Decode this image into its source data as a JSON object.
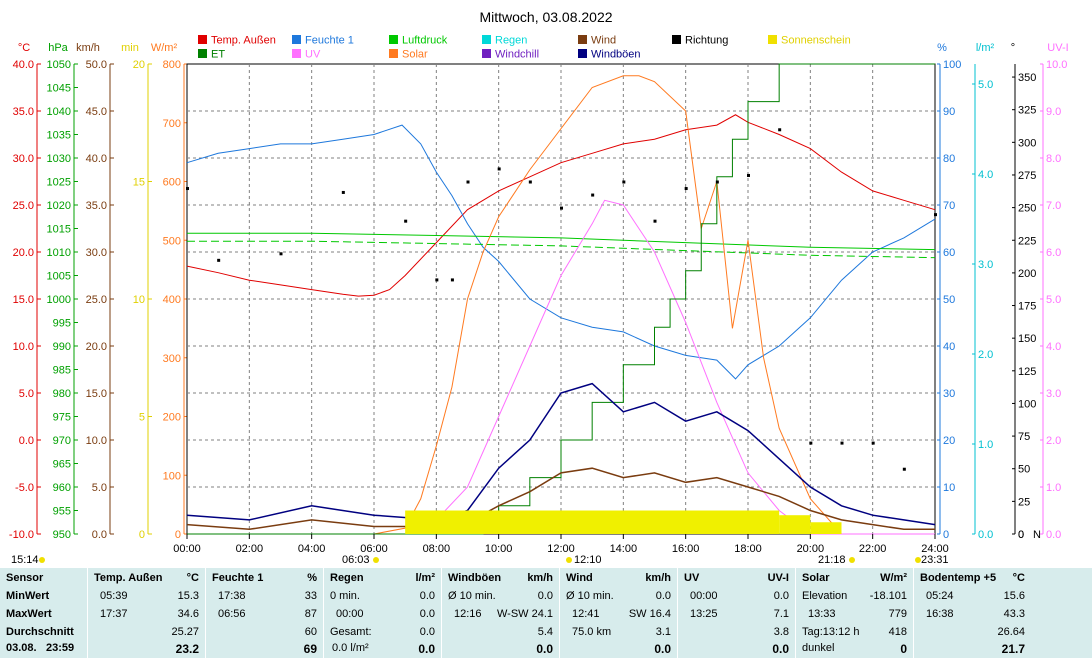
{
  "title": "Mittwoch, 03.08.2022",
  "legend": [
    {
      "label": "Temp. Außen",
      "color": "#e00000"
    },
    {
      "label": "Feuchte 1",
      "color": "#1e78dc"
    },
    {
      "label": "Luftdruck",
      "color": "#00c800"
    },
    {
      "label": "Regen",
      "color": "#00d8d8"
    },
    {
      "label": "Wind",
      "color": "#7a3c10"
    },
    {
      "label": "Richtung",
      "color": "#000000"
    },
    {
      "label": "Sonnenschein",
      "color": "#f0e000"
    },
    {
      "label": "ET",
      "color": "#008000"
    },
    {
      "label": "UV",
      "color": "#ff70ff"
    },
    {
      "label": "Solar",
      "color": "#ff7a20"
    },
    {
      "label": "Windchill",
      "color": "#7020c0"
    },
    {
      "label": "Windböen",
      "color": "#000080"
    }
  ],
  "axes_left": [
    {
      "unit": "°C",
      "color": "#e00000",
      "ticks": [
        "40.0",
        "35.0",
        "30.0",
        "25.0",
        "20.0",
        "15.0",
        "10.0",
        "5.0",
        "0.0",
        "-5.0",
        "-10.0"
      ]
    },
    {
      "unit": "hPa",
      "color": "#00a000",
      "ticks": [
        "1050",
        "1045",
        "1040",
        "1035",
        "1030",
        "1025",
        "1020",
        "1015",
        "1010",
        "1005",
        "1000",
        "995",
        "990",
        "985",
        "980",
        "975",
        "970",
        "965",
        "960",
        "955",
        "950"
      ]
    },
    {
      "unit": "km/h",
      "color": "#7a3c10",
      "ticks": [
        "50.0",
        "45.0",
        "40.0",
        "35.0",
        "30.0",
        "25.0",
        "20.0",
        "15.0",
        "10.0",
        "5.0",
        "0.0"
      ]
    },
    {
      "unit": "min",
      "color": "#e0d000",
      "ticks": [
        "20",
        "15",
        "10",
        "5",
        "0"
      ]
    },
    {
      "unit": "W/m²",
      "color": "#ff7a20",
      "ticks": [
        "800",
        "700",
        "600",
        "500",
        "400",
        "300",
        "200",
        "100",
        "0"
      ]
    }
  ],
  "axes_right": [
    {
      "unit": "%",
      "color": "#1e78dc",
      "ticks": [
        "100",
        "90",
        "80",
        "70",
        "60",
        "50",
        "40",
        "30",
        "20",
        "10",
        "0"
      ]
    },
    {
      "unit": "l/m²",
      "color": "#00c0d0",
      "ticks": [
        "5.0",
        "4.0",
        "3.0",
        "2.0",
        "1.0",
        "0.0"
      ]
    },
    {
      "unit": "°",
      "color": "#000000",
      "ticks": [
        "350",
        "325",
        "300",
        "275",
        "250",
        "225",
        "200",
        "175",
        "150",
        "125",
        "100",
        "75",
        "50",
        "25",
        "0"
      ],
      "zero_label": "N"
    },
    {
      "unit": "UV-I",
      "color": "#ff70ff",
      "ticks": [
        "10.0",
        "9.0",
        "8.0",
        "7.0",
        "6.0",
        "5.0",
        "4.0",
        "3.0",
        "2.0",
        "1.0",
        "0.0"
      ]
    }
  ],
  "x_ticks": [
    "00:00",
    "02:00",
    "04:00",
    "06:00",
    "08:00",
    "10:00",
    "12:00",
    "14:00",
    "16:00",
    "18:00",
    "20:00",
    "22:00",
    "24:00"
  ],
  "sun_markers": {
    "t1": "15:14",
    "t2": "06:03",
    "t3": "12:10",
    "t4": "21:18",
    "t5": "23:31"
  },
  "chart_data": {
    "type": "line",
    "title": "Mittwoch, 03.08.2022",
    "x_unit": "hour of day",
    "xlim": [
      0,
      24
    ],
    "series": [
      {
        "name": "Temp. Außen",
        "unit": "°C",
        "ylim": [
          -10,
          40
        ],
        "x": [
          0,
          1,
          2,
          3,
          4,
          5,
          5.5,
          6,
          6.5,
          7,
          8,
          9,
          10,
          11,
          12,
          13,
          14,
          15,
          16,
          17,
          17.6,
          18,
          19,
          20,
          21,
          22,
          23,
          24
        ],
        "y": [
          18.5,
          17.8,
          17.0,
          16.5,
          16.0,
          15.5,
          15.3,
          15.4,
          16.0,
          17.5,
          21.0,
          24.5,
          26.5,
          28.0,
          29.5,
          30.5,
          31.5,
          32.0,
          33.0,
          33.5,
          34.6,
          33.8,
          32.5,
          31.0,
          28.5,
          26.5,
          25.5,
          24.5
        ]
      },
      {
        "name": "Feuchte 1",
        "unit": "%",
        "ylim": [
          0,
          100
        ],
        "x": [
          0,
          1,
          2,
          3,
          4,
          5,
          6,
          6.9,
          7.5,
          8,
          8.5,
          9,
          9.5,
          10,
          11,
          12,
          13,
          14,
          15,
          16,
          17,
          17.6,
          18,
          19,
          20,
          21,
          22,
          23,
          24
        ],
        "y": [
          79,
          81,
          82,
          83,
          83,
          84,
          85,
          87,
          83,
          77,
          72,
          66,
          61,
          58,
          50,
          46,
          44,
          43,
          40,
          38,
          37,
          33,
          36,
          40,
          46,
          54,
          60,
          63,
          67
        ]
      },
      {
        "name": "Luftdruck",
        "unit": "hPa",
        "ylim": [
          950,
          1050
        ],
        "x": [
          0,
          4,
          8,
          12,
          16,
          20,
          24
        ],
        "y": [
          1014,
          1014,
          1013.5,
          1013,
          1012,
          1011,
          1010.5
        ]
      },
      {
        "name": "Solar",
        "unit": "W/m²",
        "ylim": [
          0,
          800
        ],
        "x": [
          0,
          6,
          7,
          7.5,
          8,
          8.5,
          9,
          9.5,
          10,
          11,
          12,
          13,
          14,
          14.5,
          15,
          16,
          16.5,
          17,
          17.5,
          18,
          18.5,
          19,
          20,
          21,
          24
        ],
        "y": [
          0,
          0,
          10,
          60,
          150,
          250,
          400,
          480,
          540,
          620,
          690,
          760,
          780,
          780,
          770,
          720,
          520,
          600,
          350,
          500,
          300,
          180,
          60,
          0,
          0
        ]
      },
      {
        "name": "UV",
        "unit": "UV-I",
        "ylim": [
          0,
          10
        ],
        "x": [
          0,
          7,
          8,
          9,
          10,
          11,
          12,
          13,
          13.4,
          14,
          15,
          16,
          17,
          18,
          19,
          20,
          24
        ],
        "y": [
          0,
          0,
          0.3,
          1.0,
          2.5,
          4.0,
          5.5,
          6.6,
          7.1,
          7.0,
          6.0,
          4.5,
          2.8,
          1.3,
          0.5,
          0,
          0
        ]
      },
      {
        "name": "ET",
        "unit": "l/m²",
        "ylim": [
          0,
          5
        ],
        "x": [
          0,
          9,
          9.5,
          10,
          11,
          12,
          13,
          14,
          15,
          15.5,
          16,
          16.5,
          17,
          17.5,
          18,
          19,
          20,
          24
        ],
        "y": [
          0,
          0,
          0.1,
          0.3,
          0.6,
          1.0,
          1.4,
          1.8,
          2.2,
          2.5,
          2.8,
          3.3,
          3.8,
          4.2,
          4.6,
          5.0,
          5.0,
          5.0
        ]
      },
      {
        "name": "Richtung",
        "unit": "°",
        "ylim": [
          0,
          360
        ],
        "x": [
          0,
          1,
          3,
          5,
          7,
          8,
          8.5,
          9,
          10,
          11,
          12,
          13,
          14,
          15,
          16,
          17,
          18,
          19,
          20,
          21,
          22,
          23,
          24
        ],
        "y": [
          265,
          210,
          215,
          262,
          240,
          195,
          195,
          270,
          280,
          270,
          250,
          260,
          270,
          240,
          265,
          270,
          275,
          310,
          70,
          70,
          70,
          50,
          245
        ]
      },
      {
        "name": "Wind",
        "unit": "km/h",
        "ylim": [
          0,
          50
        ],
        "x": [
          0,
          2,
          4,
          6,
          8,
          9,
          10,
          11,
          12,
          13,
          14,
          15,
          16,
          17,
          18,
          19,
          20,
          21,
          22,
          23,
          24
        ],
        "y": [
          1.0,
          0.5,
          1.5,
          0.8,
          0.8,
          1.2,
          3.0,
          4.5,
          6.5,
          7.0,
          6.0,
          6.5,
          5.5,
          6.0,
          5.0,
          4.0,
          2.5,
          1.5,
          1.0,
          0.5,
          0.5
        ]
      },
      {
        "name": "Windböen",
        "unit": "km/h",
        "ylim": [
          0,
          50
        ],
        "x": [
          0,
          2,
          4,
          6,
          8,
          9,
          10,
          11,
          12,
          13,
          14,
          15,
          16,
          17,
          18,
          19,
          20,
          21,
          22,
          23,
          24
        ],
        "y": [
          2.0,
          1.5,
          3.0,
          2.0,
          1.5,
          2.5,
          7.0,
          10.0,
          15.0,
          16.0,
          13.0,
          14.0,
          12.0,
          13.0,
          11.0,
          8.0,
          5.0,
          3.0,
          2.0,
          1.5,
          1.0
        ]
      },
      {
        "name": "Sonnenschein",
        "unit": "min",
        "ylim": [
          0,
          20
        ],
        "x": [
          0,
          6.5,
          7,
          9,
          12,
          15,
          18,
          19,
          20,
          21,
          24
        ],
        "y": [
          0,
          0,
          1,
          1,
          1,
          1,
          1,
          0.8,
          0.5,
          0,
          0
        ]
      }
    ]
  },
  "stats": {
    "sensor": {
      "header": "Sensor",
      "min": "MinWert",
      "max": "MaxWert",
      "avg": "Durchschnitt",
      "date": "03.08.",
      "time": "23:59"
    },
    "temp": {
      "header": "Temp. Außen",
      "unit": "°C",
      "min_time": "05:39",
      "min_val": "15.3",
      "max_time": "17:37",
      "max_val": "34.6",
      "avg": "25.27",
      "current": "23.2"
    },
    "feuchte": {
      "header": "Feuchte 1",
      "unit": "%",
      "min_time": "17:38",
      "min_val": "33",
      "max_time": "06:56",
      "max_val": "87",
      "avg": "60",
      "current": "69"
    },
    "regen": {
      "header": "Regen",
      "unit": "l/m²",
      "r1_label": "0 min.",
      "r1_val": "0.0",
      "r2_label": "00:00",
      "r2_val": "0.0",
      "r3_label": "Gesamt:",
      "r3_val": "0.0",
      "r4_label": "0.0 l/m²",
      "current": "0.0"
    },
    "windboen": {
      "header": "Windböen",
      "unit": "km/h",
      "r1_label": "Ø 10 min.",
      "r1_val": "0.0",
      "r2_time": "12:16",
      "r2_val": "W-SW 24.1",
      "avg": "5.4",
      "current": "0.0"
    },
    "wind": {
      "header": "Wind",
      "unit": "km/h",
      "r1_label": "Ø 10 min.",
      "r1_val": "0.0",
      "r2_time": "12:41",
      "r2_val": "SW 16.4",
      "r3_label": "75.0 km",
      "avg": "3.1",
      "current": "0.0"
    },
    "uv": {
      "header": "UV",
      "unit": "UV-I",
      "min_time": "00:00",
      "min_val": "0.0",
      "max_time": "13:25",
      "max_val": "7.1",
      "avg": "3.8",
      "current": "0.0"
    },
    "solar": {
      "header": "Solar",
      "unit": "W/m²",
      "r1_label": "Elevation",
      "r1_val": "-18.101",
      "r2_time": "13:33",
      "r2_val": "779",
      "r3_label": "Tag:13:12 h",
      "r3_val": "418",
      "r4_label": "dunkel",
      "current": "0"
    },
    "boden": {
      "header": "Bodentemp +5",
      "unit": "°C",
      "min_time": "05:24",
      "min_val": "15.6",
      "max_time": "16:38",
      "max_val": "43.3",
      "avg": "26.64",
      "current": "21.7"
    }
  }
}
